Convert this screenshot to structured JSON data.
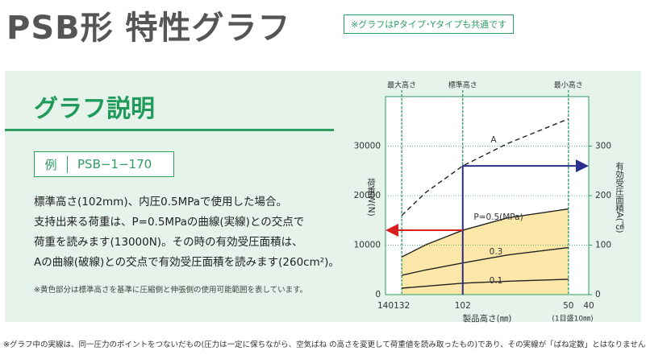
{
  "header": {
    "title": "PSB形 特性グラフ",
    "badge": "※グラフはPタイプ･Yタイプも共通です"
  },
  "panel": {
    "heading": "グラフ説明",
    "example_label": "例",
    "example_code": "PSB−1−170",
    "lines": [
      "標準高さ(102mm)、内圧0.5MPaで使用した場合。",
      "支持出来る荷重は、P=0.5MPaの曲線(実線)との交点で",
      "荷重を読みます(13000N)。その時の有効受圧面積は、",
      "Aの曲線(破線)との交点で有効受圧面積を読みます(260cm²)。"
    ],
    "note": "※黄色部分は標準高さを基準に圧縮側と伸張側の使用可能範囲を表しています。"
  },
  "chart_data": {
    "type": "line",
    "xlabel": "製品高さ(㎜)",
    "xlabel_note": "(1目盛10㎜)",
    "ylabel": "荷重W(N)",
    "y2label": "有効受圧面積A(㎠)",
    "x": [
      132,
      120,
      102,
      80,
      50
    ],
    "xlim": [
      140,
      40
    ],
    "xticks": [
      140,
      132,
      102,
      50,
      40
    ],
    "ylim": [
      0,
      40000
    ],
    "yticks": [
      0,
      10000,
      20000,
      30000
    ],
    "y2lim": [
      0,
      400
    ],
    "y2ticks": [
      0,
      100,
      200,
      300
    ],
    "markers": [
      {
        "x": 132,
        "label": "最大高さ"
      },
      {
        "x": 102,
        "label": "標準高さ"
      },
      {
        "x": 50,
        "label": "最小高さ"
      }
    ],
    "series": [
      {
        "name": "P=0.5(MPa)",
        "color": "#222222",
        "values": [
          7600,
          10100,
          13000,
          15500,
          17300
        ]
      },
      {
        "name": "0.3",
        "color": "#222222",
        "values": [
          3900,
          5000,
          6400,
          8000,
          9500
        ]
      },
      {
        "name": "0.1",
        "color": "#222222",
        "values": [
          1300,
          1700,
          2300,
          2700,
          3100
        ]
      },
      {
        "name": "A",
        "color": "#222222",
        "axis": "y2",
        "dashed": true,
        "values": [
          160,
          207,
          260,
          305,
          355
        ]
      }
    ],
    "fill_color": "#fbe7a8",
    "grid_color": "#2e9e62"
  },
  "footnote": "※グラフ中の実線は、同一圧力のポイントをつないだもの(圧力は一定に保ちながら、空気ばね の高さを変更して荷重値を読み取ったもの)であり、その実線が「ばね定数」とはなりません。"
}
